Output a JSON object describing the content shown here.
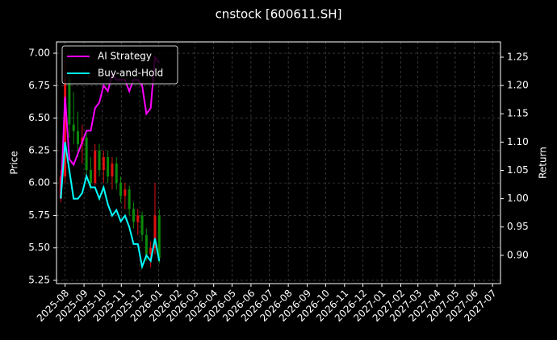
{
  "chart_data": {
    "type": "candlestick",
    "title": "cnstock [600611.SH]",
    "ylabel": "Price",
    "y2label": "Return",
    "x": [
      "2025-07-25",
      "2025-08-01",
      "2025-08-08",
      "2025-08-15",
      "2025-08-22",
      "2025-08-29",
      "2025-09-05",
      "2025-09-12",
      "2025-09-19",
      "2025-09-26",
      "2025-10-03",
      "2025-10-10",
      "2025-10-17",
      "2025-10-24",
      "2025-10-31",
      "2025-11-07",
      "2025-11-14",
      "2025-11-21",
      "2025-11-28",
      "2025-12-05",
      "2025-12-12",
      "2025-12-19",
      "2025-12-26",
      "2026-01-02"
    ],
    "open": [
      5.88,
      6.05,
      6.8,
      6.45,
      6.4,
      6.3,
      6.35,
      6.1,
      6.0,
      6.25,
      6.1,
      6.2,
      6.05,
      6.15,
      6.0,
      5.9,
      5.95,
      5.8,
      5.7,
      5.75,
      5.6,
      5.45,
      5.5,
      5.75
    ],
    "high": [
      6.1,
      6.95,
      6.85,
      6.7,
      6.55,
      6.45,
      6.4,
      6.2,
      6.3,
      6.3,
      6.25,
      6.25,
      6.2,
      6.2,
      6.05,
      6.0,
      5.98,
      5.85,
      5.8,
      5.78,
      5.65,
      5.55,
      6.0,
      5.8
    ],
    "low": [
      5.85,
      6.0,
      6.35,
      6.3,
      6.2,
      6.15,
      6.05,
      5.95,
      5.98,
      6.05,
      6.0,
      6.0,
      5.95,
      5.95,
      5.85,
      5.8,
      5.75,
      5.65,
      5.6,
      5.55,
      5.4,
      5.35,
      5.45,
      5.38
    ],
    "close": [
      6.05,
      6.8,
      6.45,
      6.4,
      6.3,
      6.35,
      6.1,
      6.0,
      6.25,
      6.1,
      6.2,
      6.05,
      6.15,
      6.0,
      5.9,
      5.95,
      5.8,
      5.7,
      5.75,
      5.6,
      5.45,
      5.5,
      5.75,
      5.42
    ],
    "up_color": "#e01010",
    "down_color": "#0a8a0a",
    "series": [
      {
        "name": "AI Strategy",
        "color": "#ff00ff",
        "axis": "y2",
        "values": [
          1.0,
          1.18,
          1.07,
          1.06,
          1.08,
          1.1,
          1.12,
          1.12,
          1.16,
          1.17,
          1.2,
          1.19,
          1.22,
          1.21,
          1.21,
          1.21,
          1.19,
          1.21,
          1.21,
          1.2,
          1.15,
          1.16,
          1.25,
          1.24
        ]
      },
      {
        "name": "Buy-and-Hold",
        "color": "#00ffff",
        "axis": "y2",
        "values": [
          1.0,
          1.1,
          1.05,
          1.0,
          1.0,
          1.01,
          1.04,
          1.02,
          1.02,
          1.0,
          1.02,
          0.99,
          0.97,
          0.98,
          0.96,
          0.97,
          0.95,
          0.92,
          0.92,
          0.88,
          0.9,
          0.89,
          0.93,
          0.89
        ]
      }
    ],
    "xlim": [
      "2025-07-18",
      "2027-07-14"
    ],
    "xticks": [
      "2025-08",
      "2025-09",
      "2025-10",
      "2025-11",
      "2025-12",
      "2026-01",
      "2026-02",
      "2026-03",
      "2026-04",
      "2026-05",
      "2026-06",
      "2026-07",
      "2026-08",
      "2026-09",
      "2026-10",
      "2026-11",
      "2026-12",
      "2027-01",
      "2027-02",
      "2027-03",
      "2027-04",
      "2027-05",
      "2027-06",
      "2027-07"
    ],
    "ylim": [
      5.225,
      7.087
    ],
    "yticks": [
      {
        "value": 5.25,
        "label": "5.25"
      },
      {
        "value": 5.5,
        "label": "5.50"
      },
      {
        "value": 5.75,
        "label": "5.75"
      },
      {
        "value": 6,
        "label": "6.00"
      },
      {
        "value": 6.25,
        "label": "6.25"
      },
      {
        "value": 6.5,
        "label": "6.50"
      },
      {
        "value": 6.75,
        "label": "6.75"
      },
      {
        "value": 7,
        "label": "7.00"
      }
    ],
    "y2lim": [
      0.85,
      1.277
    ],
    "y2ticks": [
      {
        "value": 0.9,
        "label": "0.90"
      },
      0.95,
      {
        "value": 1,
        "label": "1.00"
      },
      1.05,
      {
        "value": 1.1,
        "label": "1.10"
      },
      1.15,
      {
        "value": 1.2,
        "label": "1.20"
      },
      1.25
    ],
    "grid": true,
    "legend": "upper left"
  }
}
